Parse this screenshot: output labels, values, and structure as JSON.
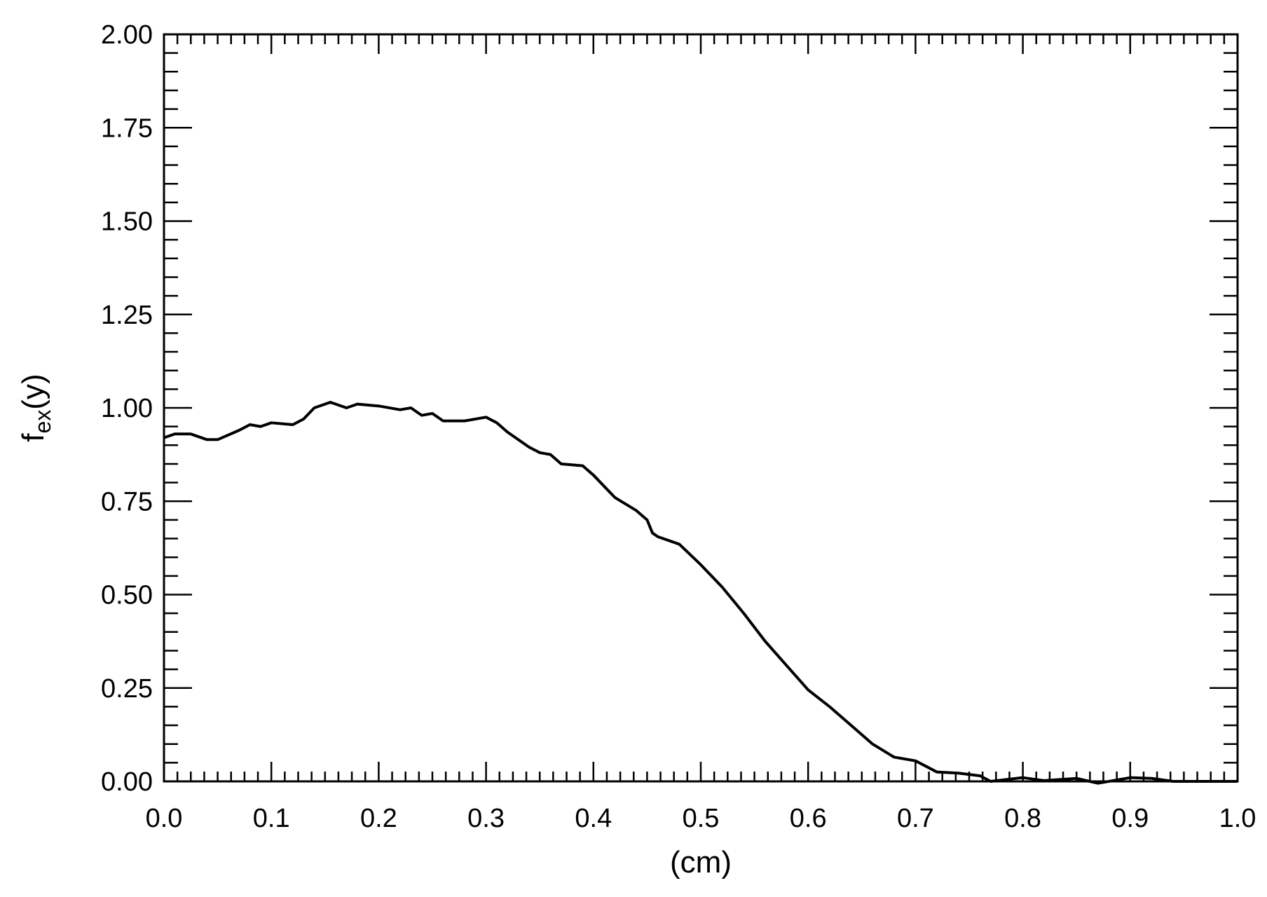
{
  "chart_data": {
    "type": "line",
    "xlabel": "(cm)",
    "ylabel": [
      "f",
      "ex",
      "(y)"
    ],
    "xlim": [
      0,
      1
    ],
    "ylim": [
      0,
      2
    ],
    "xticks": [
      {
        "value": 0,
        "label": "0.0"
      },
      0.1,
      0.2,
      0.3,
      0.4,
      0.5,
      0.6,
      0.7,
      0.8,
      0.9,
      {
        "value": 1,
        "label": "1.0"
      }
    ],
    "yticks": [
      {
        "value": 0,
        "label": "0.00"
      },
      0.25,
      {
        "value": 0.5,
        "label": "0.50"
      },
      0.75,
      {
        "value": 1,
        "label": "1.00"
      },
      1.25,
      {
        "value": 1.5,
        "label": "1.50"
      },
      1.75,
      {
        "value": 2,
        "label": "2.00"
      }
    ],
    "grid": false,
    "series": [
      {
        "color": "#000000",
        "x": [
          0.0,
          0.01,
          0.025,
          0.04,
          0.05,
          0.07,
          0.08,
          0.09,
          0.1,
          0.12,
          0.13,
          0.14,
          0.155,
          0.17,
          0.18,
          0.2,
          0.22,
          0.23,
          0.24,
          0.25,
          0.26,
          0.28,
          0.3,
          0.31,
          0.32,
          0.34,
          0.35,
          0.36,
          0.37,
          0.39,
          0.4,
          0.41,
          0.42,
          0.44,
          0.45,
          0.455,
          0.46,
          0.48,
          0.5,
          0.52,
          0.54,
          0.56,
          0.58,
          0.6,
          0.62,
          0.64,
          0.66,
          0.68,
          0.7,
          0.71,
          0.72,
          0.74,
          0.76,
          0.77,
          0.8,
          0.82,
          0.85,
          0.87,
          0.9,
          0.92,
          0.94,
          1.0
        ],
        "values": [
          0.92,
          0.93,
          0.93,
          0.915,
          0.915,
          0.94,
          0.955,
          0.95,
          0.96,
          0.955,
          0.97,
          1.0,
          1.015,
          1.0,
          1.01,
          1.005,
          0.995,
          1.0,
          0.98,
          0.985,
          0.965,
          0.965,
          0.975,
          0.96,
          0.935,
          0.895,
          0.88,
          0.875,
          0.85,
          0.845,
          0.82,
          0.79,
          0.76,
          0.725,
          0.7,
          0.665,
          0.655,
          0.635,
          0.58,
          0.52,
          0.45,
          0.375,
          0.31,
          0.245,
          0.2,
          0.15,
          0.1,
          0.065,
          0.055,
          0.04,
          0.025,
          0.022,
          0.015,
          0.0,
          0.01,
          0.002,
          0.008,
          -0.005,
          0.01,
          0.008,
          0.0,
          0.0
        ]
      }
    ]
  }
}
